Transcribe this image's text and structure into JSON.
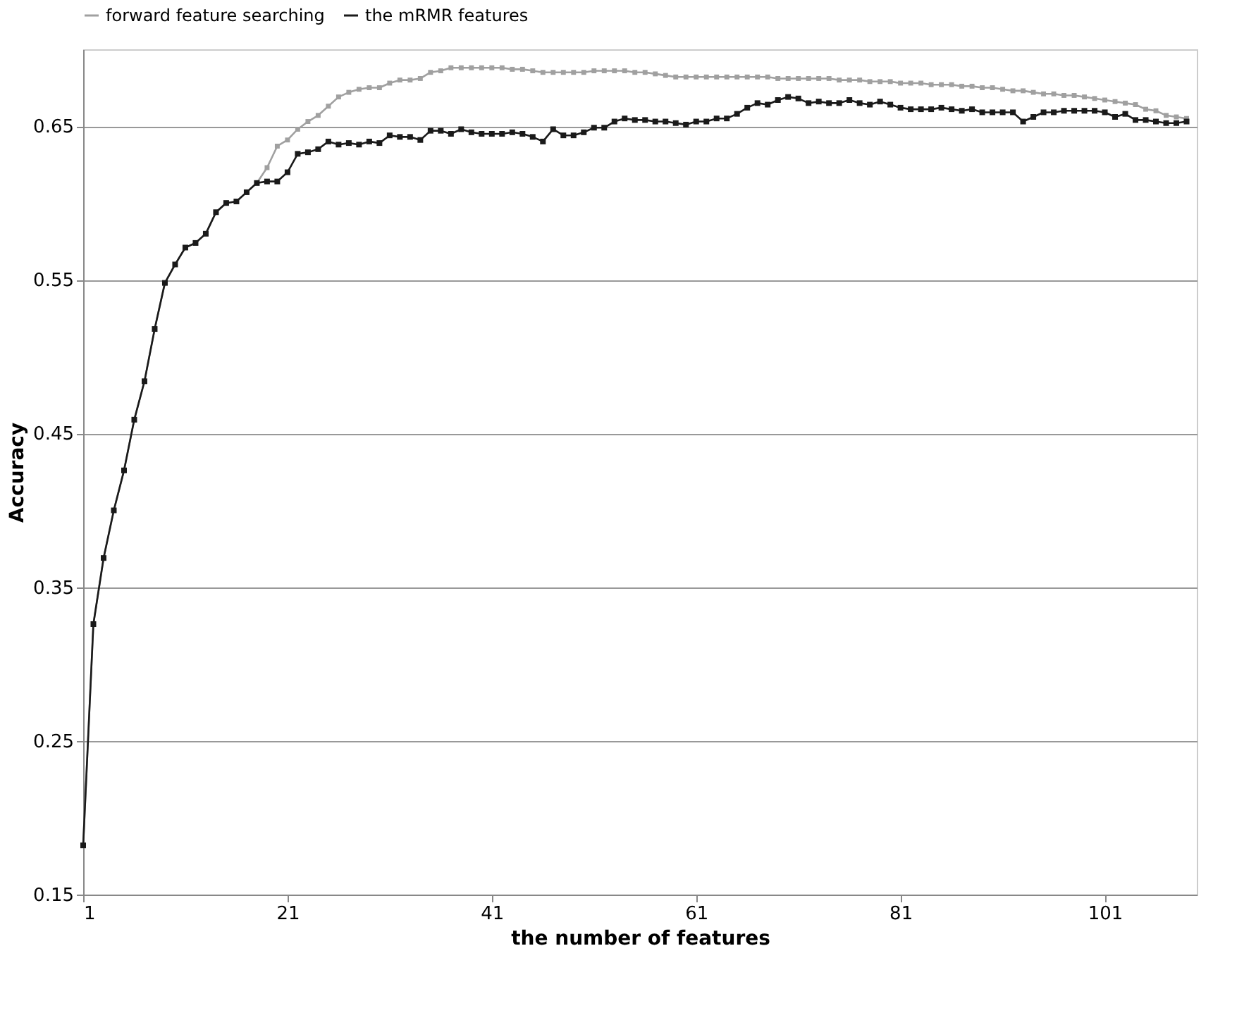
{
  "chart_data": {
    "type": "line",
    "xlabel": "the number of features",
    "ylabel": "Accuracy",
    "x": [
      1,
      2,
      3,
      4,
      5,
      6,
      7,
      8,
      9,
      10,
      11,
      12,
      13,
      14,
      15,
      16,
      17,
      18,
      19,
      20,
      21,
      22,
      23,
      24,
      25,
      26,
      27,
      28,
      29,
      30,
      31,
      32,
      33,
      34,
      35,
      36,
      37,
      38,
      39,
      40,
      41,
      42,
      43,
      44,
      45,
      46,
      47,
      48,
      49,
      50,
      51,
      52,
      53,
      54,
      55,
      56,
      57,
      58,
      59,
      60,
      61,
      62,
      63,
      64,
      65,
      66,
      67,
      68,
      69,
      70,
      71,
      72,
      73,
      74,
      75,
      76,
      77,
      78,
      79,
      80,
      81,
      82,
      83,
      84,
      85,
      86,
      87,
      88,
      89,
      90,
      91,
      92,
      93,
      94,
      95,
      96,
      97,
      98,
      99,
      100,
      101,
      102,
      103,
      104,
      105,
      106,
      107,
      108,
      109
    ],
    "series": [
      {
        "name": "forward feature searching",
        "color": "#a0a0a0",
        "values": [
          0.182,
          0.326,
          0.369,
          0.4,
          0.426,
          0.459,
          0.484,
          0.518,
          0.548,
          0.56,
          0.571,
          0.574,
          0.58,
          0.594,
          0.6,
          0.601,
          0.607,
          0.613,
          0.623,
          0.637,
          0.641,
          0.648,
          0.653,
          0.657,
          0.663,
          0.669,
          0.672,
          0.674,
          0.675,
          0.675,
          0.678,
          0.68,
          0.68,
          0.681,
          0.685,
          0.686,
          0.688,
          0.688,
          0.688,
          0.688,
          0.688,
          0.688,
          0.687,
          0.687,
          0.686,
          0.685,
          0.685,
          0.685,
          0.685,
          0.685,
          0.686,
          0.686,
          0.686,
          0.686,
          0.685,
          0.685,
          0.684,
          0.683,
          0.682,
          0.682,
          0.682,
          0.682,
          0.682,
          0.682,
          0.682,
          0.682,
          0.682,
          0.682,
          0.681,
          0.681,
          0.681,
          0.681,
          0.681,
          0.681,
          0.68,
          0.68,
          0.68,
          0.679,
          0.679,
          0.679,
          0.678,
          0.678,
          0.678,
          0.677,
          0.677,
          0.677,
          0.676,
          0.676,
          0.675,
          0.675,
          0.674,
          0.673,
          0.673,
          0.672,
          0.671,
          0.671,
          0.67,
          0.67,
          0.669,
          0.668,
          0.667,
          0.666,
          0.665,
          0.664,
          0.661,
          0.66,
          0.657,
          0.656,
          0.655
        ]
      },
      {
        "name": "the mRMR features",
        "color": "#1a1a1a",
        "values": [
          0.182,
          0.326,
          0.369,
          0.4,
          0.426,
          0.459,
          0.484,
          0.518,
          0.548,
          0.56,
          0.571,
          0.574,
          0.58,
          0.594,
          0.6,
          0.601,
          0.607,
          0.613,
          0.614,
          0.614,
          0.62,
          0.632,
          0.633,
          0.635,
          0.64,
          0.638,
          0.639,
          0.638,
          0.64,
          0.639,
          0.644,
          0.643,
          0.643,
          0.641,
          0.647,
          0.647,
          0.645,
          0.648,
          0.646,
          0.645,
          0.645,
          0.645,
          0.646,
          0.645,
          0.643,
          0.64,
          0.648,
          0.644,
          0.644,
          0.646,
          0.649,
          0.649,
          0.653,
          0.655,
          0.654,
          0.654,
          0.653,
          0.653,
          0.652,
          0.651,
          0.653,
          0.653,
          0.655,
          0.655,
          0.658,
          0.662,
          0.665,
          0.664,
          0.667,
          0.669,
          0.668,
          0.665,
          0.666,
          0.665,
          0.665,
          0.667,
          0.665,
          0.664,
          0.666,
          0.664,
          0.662,
          0.661,
          0.661,
          0.661,
          0.662,
          0.661,
          0.66,
          0.661,
          0.659,
          0.659,
          0.659,
          0.659,
          0.653,
          0.656,
          0.659,
          0.659,
          0.66,
          0.66,
          0.66,
          0.66,
          0.659,
          0.656,
          0.658,
          0.654,
          0.654,
          0.653,
          0.652,
          0.652,
          0.653
        ]
      }
    ],
    "xlim": [
      1,
      110
    ],
    "xticks": [
      1,
      21,
      41,
      61,
      81,
      101
    ],
    "ylim": [
      0.15,
      0.7
    ],
    "yticks": [
      0.15,
      0.25,
      0.35,
      0.45,
      0.55,
      0.65
    ],
    "grid": "y",
    "legend": "top",
    "marker": "square",
    "line_style": "solid"
  }
}
